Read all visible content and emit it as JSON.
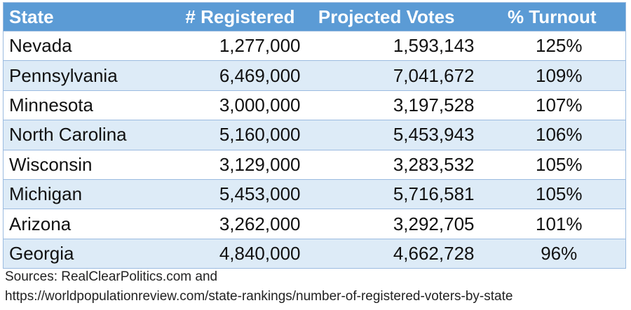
{
  "table": {
    "headers": [
      "State",
      "# Registered",
      "Projected Votes",
      "% Turnout"
    ],
    "rows": [
      [
        "Nevada",
        "1,277,000",
        "1,593,143",
        "125%"
      ],
      [
        "Pennsylvania",
        "6,469,000",
        "7,041,672",
        "109%"
      ],
      [
        "Minnesota",
        "3,000,000",
        "3,197,528",
        "107%"
      ],
      [
        "North Carolina",
        "5,160,000",
        "5,453,943",
        "106%"
      ],
      [
        "Wisconsin",
        "3,129,000",
        "3,283,532",
        "105%"
      ],
      [
        "Michigan",
        "5,453,000",
        "5,716,581",
        "105%"
      ],
      [
        "Arizona",
        "3,262,000",
        "3,292,705",
        "101%"
      ],
      [
        "Georgia",
        "4,840,000",
        "4,662,728",
        "96%"
      ]
    ]
  },
  "sources": {
    "line1": "Sources: RealClearPolitics.com and",
    "line2": "https://worldpopulationreview.com/state-rankings/number-of-registered-voters-by-state"
  },
  "colors": {
    "header_bg": "#5b9bd5",
    "band_bg": "#ddebf7",
    "row_bg": "#ffffff",
    "border": "#9bbbe0"
  }
}
